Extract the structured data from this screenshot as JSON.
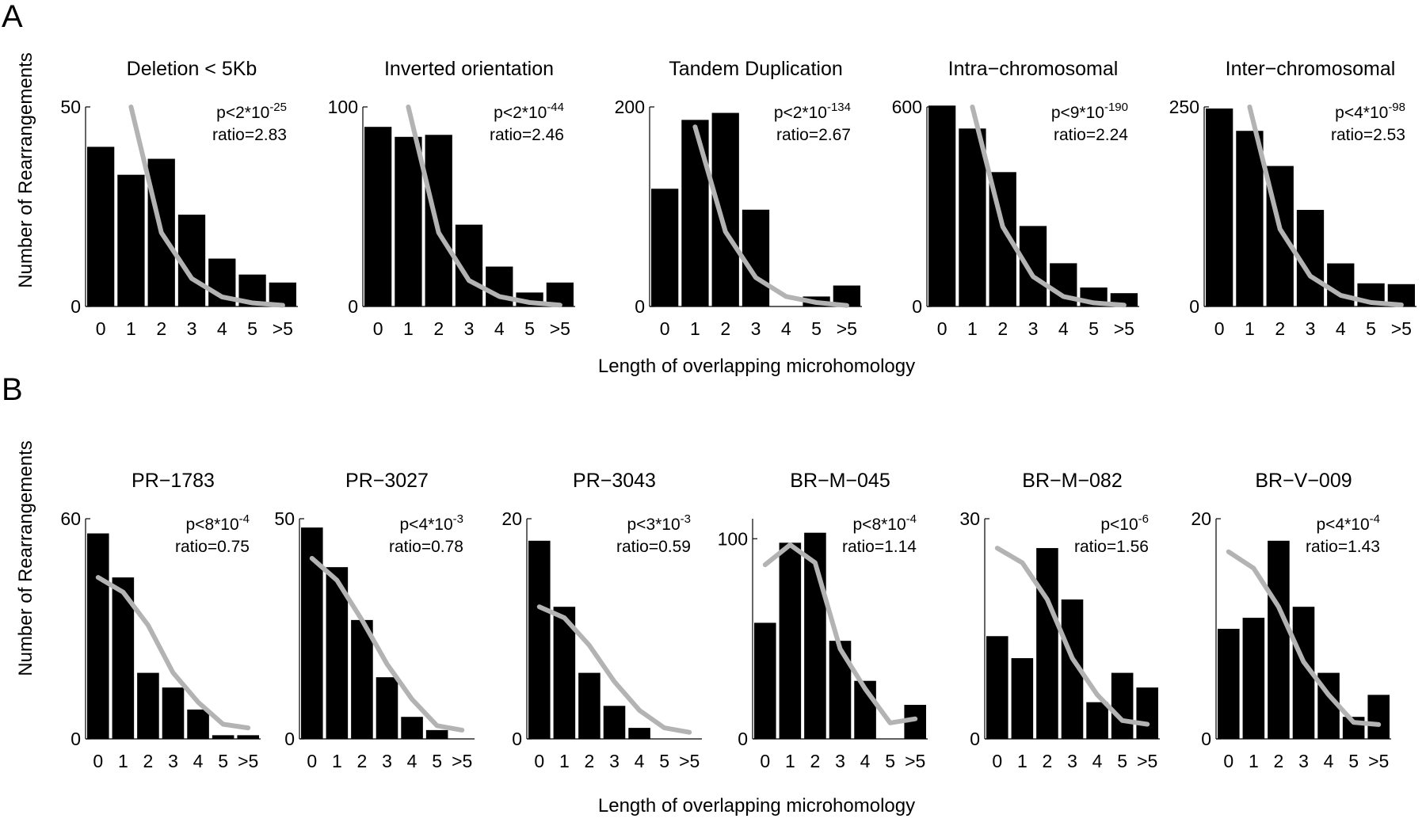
{
  "panel_labels": [
    "A",
    "B"
  ],
  "xlabel": "Length of overlapping microhomology",
  "ylabel": "Number of Rearrangements",
  "chart_data": [
    {
      "panel": "A",
      "type": "bar",
      "title": "Deletion < 5Kb",
      "categories": [
        "0",
        "1",
        "2",
        "3",
        "4",
        "5",
        ">5"
      ],
      "values": [
        40,
        33,
        37,
        23,
        12,
        8,
        6
      ],
      "fit": [
        null,
        50,
        18.5,
        7,
        2.4,
        0.9,
        0.3
      ],
      "ylim": [
        0,
        50
      ],
      "yticks": [
        0,
        50
      ],
      "p_base": "p<2*10",
      "p_exp": "-25",
      "ratio": "ratio=2.83"
    },
    {
      "panel": "A",
      "type": "bar",
      "title": "Inverted orientation",
      "categories": [
        "0",
        "1",
        "2",
        "3",
        "4",
        "5",
        ">5"
      ],
      "values": [
        90,
        85,
        86,
        41,
        20,
        7,
        12
      ],
      "fit": [
        null,
        100,
        37,
        13,
        5,
        2,
        0.7
      ],
      "ylim": [
        0,
        100
      ],
      "yticks": [
        0,
        100
      ],
      "p_base": "p<2*10",
      "p_exp": "-44",
      "ratio": "ratio=2.46"
    },
    {
      "panel": "A",
      "type": "bar",
      "title": "Tandem Duplication",
      "categories": [
        "0",
        "1",
        "2",
        "3",
        "4",
        "5",
        ">5"
      ],
      "values": [
        118,
        187,
        194,
        97,
        0,
        10,
        21
      ],
      "fit": [
        null,
        180,
        75,
        29,
        10,
        4,
        1
      ],
      "ylim": [
        0,
        200
      ],
      "yticks": [
        0,
        200
      ],
      "p_base": "p<2*10",
      "p_exp": "-134",
      "ratio": "ratio=2.67"
    },
    {
      "panel": "A",
      "type": "bar",
      "title": "Intra−chromosomal",
      "categories": [
        "0",
        "1",
        "2",
        "3",
        "4",
        "5",
        ">5"
      ],
      "values": [
        604,
        535,
        404,
        242,
        130,
        57,
        40
      ],
      "fit": [
        null,
        600,
        240,
        90,
        30,
        11,
        4
      ],
      "ylim": [
        0,
        600
      ],
      "yticks": [
        0,
        600
      ],
      "p_base": "p<9*10",
      "p_exp": "-190",
      "ratio": "ratio=2.24"
    },
    {
      "panel": "A",
      "type": "bar",
      "title": "Inter−chromosomal",
      "categories": [
        "0",
        "1",
        "2",
        "3",
        "4",
        "5",
        ">5"
      ],
      "values": [
        248,
        220,
        176,
        121,
        54,
        29,
        28
      ],
      "fit": [
        null,
        250,
        97,
        38,
        14,
        5,
        2
      ],
      "ylim": [
        0,
        250
      ],
      "yticks": [
        0,
        250
      ],
      "p_base": "p<4*10",
      "p_exp": "-98",
      "ratio": "ratio=2.53"
    },
    {
      "panel": "B",
      "type": "bar",
      "title": "PR−1783",
      "categories": [
        "0",
        "1",
        "2",
        "3",
        "4",
        "5",
        ">5"
      ],
      "values": [
        56,
        44,
        18,
        14,
        8,
        1,
        1
      ],
      "fit": [
        44,
        40,
        31,
        18,
        10,
        4,
        3
      ],
      "ylim": [
        0,
        60
      ],
      "yticks": [
        0,
        60
      ],
      "p_base": "p<8*10",
      "p_exp": "-4",
      "ratio": "ratio=0.75"
    },
    {
      "panel": "B",
      "type": "bar",
      "title": "PR−3027",
      "categories": [
        "0",
        "1",
        "2",
        "3",
        "4",
        "5",
        ">5"
      ],
      "values": [
        48,
        39,
        27,
        14,
        5,
        2,
        0
      ],
      "fit": [
        41,
        36,
        27,
        17,
        9,
        3,
        2
      ],
      "ylim": [
        0,
        50
      ],
      "yticks": [
        0,
        50
      ],
      "p_base": "p<4*10",
      "p_exp": "-3",
      "ratio": "ratio=0.78"
    },
    {
      "panel": "B",
      "type": "bar",
      "title": "PR−3043",
      "categories": [
        "0",
        "1",
        "2",
        "3",
        "4",
        "5",
        ">5"
      ],
      "values": [
        18,
        12,
        6,
        3,
        1,
        0,
        0
      ],
      "fit": [
        12,
        11,
        8.5,
        5.2,
        2.6,
        1,
        0.6
      ],
      "ylim": [
        0,
        20
      ],
      "yticks": [
        0,
        20
      ],
      "p_base": "p<3*10",
      "p_exp": "-3",
      "ratio": "ratio=0.59"
    },
    {
      "panel": "B",
      "type": "bar",
      "title": "BR−M−045",
      "categories": [
        "0",
        "1",
        "2",
        "3",
        "4",
        "5",
        ">5"
      ],
      "values": [
        58,
        98,
        103,
        49,
        29,
        0,
        17
      ],
      "fit": [
        87,
        97,
        88,
        45,
        25,
        8,
        10
      ],
      "ylim": [
        0,
        110
      ],
      "yticks": [
        0,
        100
      ],
      "p_base": "p<8*10",
      "p_exp": "-4",
      "ratio": "ratio=1.14"
    },
    {
      "panel": "B",
      "type": "bar",
      "title": "BR−M−082",
      "categories": [
        "0",
        "1",
        "2",
        "3",
        "4",
        "5",
        ">5"
      ],
      "values": [
        14,
        11,
        26,
        19,
        5,
        9,
        7
      ],
      "fit": [
        26,
        24,
        19,
        11,
        6,
        2.5,
        2
      ],
      "ylim": [
        0,
        30
      ],
      "yticks": [
        0,
        30
      ],
      "p_base": "p<10",
      "p_exp": "-6",
      "ratio": "ratio=1.56"
    },
    {
      "panel": "B",
      "type": "bar",
      "title": "BR−V−009",
      "categories": [
        "0",
        "1",
        "2",
        "3",
        "4",
        "5",
        ">5"
      ],
      "values": [
        10,
        11,
        18,
        12,
        6,
        2,
        4
      ],
      "fit": [
        17,
        15.5,
        12,
        7,
        4,
        1.5,
        1.3
      ],
      "ylim": [
        0,
        20
      ],
      "yticks": [
        0,
        20
      ],
      "p_base": "p<4*10",
      "p_exp": "-4",
      "ratio": "ratio=1.43"
    }
  ]
}
